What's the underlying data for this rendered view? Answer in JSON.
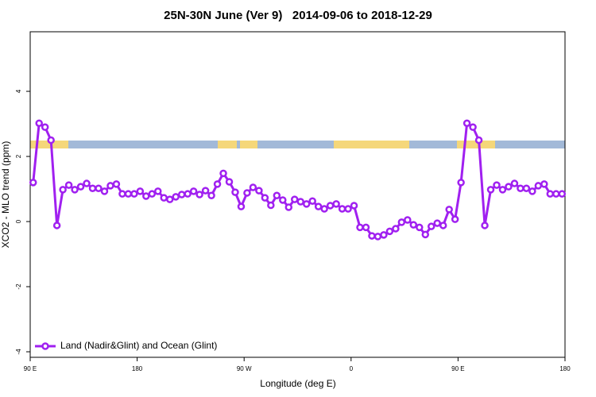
{
  "chart_data": {
    "type": "line",
    "title": "25N-30N June (Ver 9)   2014-09-06 to 2018-12-29",
    "xlabel": "Longitude (deg E)",
    "ylabel": "XCO2 - MLO trend (ppm)",
    "xlim": [
      90,
      540
    ],
    "ylim": [
      -4.17,
      5.83
    ],
    "xticks": [
      {
        "value": 90,
        "label": "90 E"
      },
      180,
      {
        "value": 270,
        "label": "90 W"
      },
      {
        "value": 360,
        "label": "0"
      },
      {
        "value": 450,
        "label": "90 E"
      },
      {
        "value": 540,
        "label": "180"
      }
    ],
    "yticks": [
      -4,
      -2,
      0,
      2,
      4
    ],
    "grid": false,
    "legend": "bottom-left",
    "x": [
      92.5,
      97.5,
      102.5,
      107.5,
      112.5,
      117.5,
      122.5,
      127.5,
      132.5,
      137.5,
      142.5,
      147.5,
      152.5,
      157.5,
      162.5,
      167.5,
      172.5,
      177.5,
      182.5,
      187.5,
      192.5,
      197.5,
      202.5,
      207.5,
      212.5,
      217.5,
      222.5,
      227.5,
      232.5,
      237.5,
      242.5,
      247.5,
      252.5,
      257.5,
      262.5,
      267.5,
      272.5,
      277.5,
      282.5,
      287.5,
      292.5,
      297.5,
      302.5,
      307.5,
      312.5,
      317.5,
      322.5,
      327.5,
      332.5,
      337.5,
      342.5,
      347.5,
      352.5,
      357.5,
      362.5,
      367.5,
      372.5,
      377.5,
      382.5,
      387.5,
      392.5,
      397.5,
      402.5,
      407.5,
      412.5,
      417.5,
      422.5,
      427.5,
      432.5,
      437.5,
      442.5,
      447.5,
      452.5,
      457.5,
      462.5,
      467.5,
      472.5,
      477.5,
      482.5,
      487.5,
      492.5,
      497.5,
      502.5,
      507.5,
      512.5,
      517.5,
      522.5,
      527.5,
      532.5,
      537.5
    ],
    "series": [
      {
        "name": "Land (Nadir&Glint) and Ocean (Glint)",
        "color": "#a020f0",
        "values": [
          1.2,
          3.02,
          2.9,
          2.5,
          -0.12,
          0.98,
          1.12,
          0.98,
          1.07,
          1.17,
          1.02,
          1.02,
          0.93,
          1.1,
          1.15,
          0.85,
          0.85,
          0.85,
          0.93,
          0.78,
          0.85,
          0.93,
          0.73,
          0.68,
          0.76,
          0.83,
          0.85,
          0.93,
          0.83,
          0.95,
          0.8,
          1.15,
          1.48,
          1.22,
          0.9,
          0.46,
          0.88,
          1.05,
          0.95,
          0.73,
          0.5,
          0.8,
          0.66,
          0.44,
          0.68,
          0.61,
          0.54,
          0.63,
          0.46,
          0.39,
          0.49,
          0.54,
          0.39,
          0.39,
          0.49,
          -0.18,
          -0.18,
          -0.44,
          -0.46,
          -0.41,
          -0.3,
          -0.22,
          -0.02,
          0.05,
          -0.1,
          -0.18,
          -0.4,
          -0.15,
          -0.05,
          -0.12,
          0.37,
          0.07,
          1.2,
          3.02,
          2.9,
          2.5,
          -0.12,
          0.98,
          1.12,
          0.98,
          1.07,
          1.17,
          1.02,
          1.02,
          0.93,
          1.1,
          1.15,
          0.85,
          0.85,
          0.85
        ]
      }
    ]
  }
}
